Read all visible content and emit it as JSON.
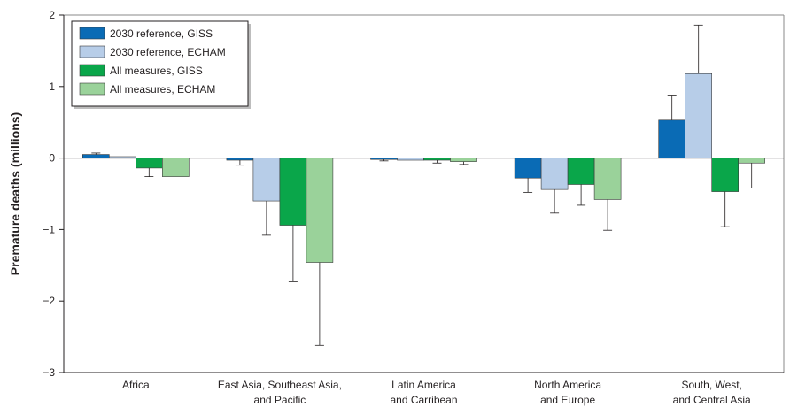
{
  "chart_data": {
    "type": "bar",
    "title": "",
    "xlabel": "",
    "ylabel": "Premature deaths (millions)",
    "ylim": [
      -3,
      2
    ],
    "yticks": [
      2,
      1,
      0,
      -1,
      -2,
      -3
    ],
    "ytick_labels": [
      "2",
      "1",
      "0",
      "−1",
      "−2",
      "−3"
    ],
    "grid": false,
    "legend_position": "top-left",
    "categories": [
      [
        "Africa"
      ],
      [
        "East Asia, Southeast Asia,",
        "and Pacific"
      ],
      [
        "Latin America",
        "and Carribean"
      ],
      [
        "North America",
        "and Europe"
      ],
      [
        "South, West,",
        "and Central Asia"
      ]
    ],
    "series": [
      {
        "name": "2030 reference, GISS",
        "color": "#0a6bb5",
        "values": [
          0.05,
          -0.03,
          -0.02,
          -0.28,
          0.53
        ],
        "error_ends": [
          0.07,
          -0.1,
          -0.04,
          -0.48,
          0.88
        ]
      },
      {
        "name": "2030 reference, ECHAM",
        "color": "#b7cde8",
        "values": [
          0.02,
          -0.6,
          -0.03,
          -0.44,
          1.18
        ],
        "error_ends": [
          0.02,
          -1.08,
          -0.04,
          -0.77,
          1.86
        ]
      },
      {
        "name": "All measures, GISS",
        "color": "#0aa64a",
        "values": [
          -0.14,
          -0.94,
          -0.03,
          -0.37,
          -0.47
        ],
        "error_ends": [
          -0.26,
          -1.73,
          -0.07,
          -0.66,
          -0.96
        ]
      },
      {
        "name": "All measures, ECHAM",
        "color": "#9ad29a",
        "values": [
          -0.26,
          -1.46,
          -0.05,
          -0.58,
          -0.07
        ],
        "error_ends": [
          -0.26,
          -2.62,
          -0.09,
          -1.01,
          -0.42
        ]
      }
    ]
  }
}
